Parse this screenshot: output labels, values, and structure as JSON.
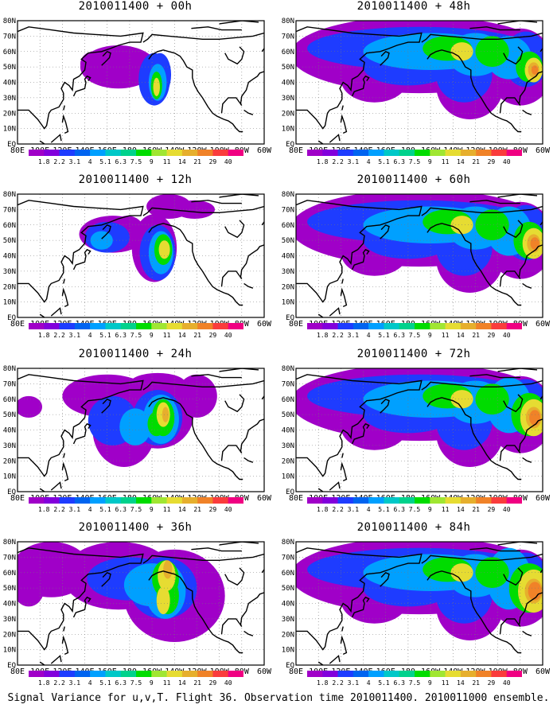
{
  "footer": "Signal Variance for u,v,T. Flight 36. Observation time 2010011400. 2010011000 ensemble.",
  "colorbar": {
    "labels": [
      "1.8",
      "2.2",
      "3.1",
      "4",
      "5.1",
      "6.3",
      "7.5",
      "9",
      "11",
      "14",
      "21",
      "29",
      "40"
    ],
    "colors": [
      "#a000c8",
      "#8200dc",
      "#1e3cff",
      "#0064f0",
      "#00a0ff",
      "#00c8c8",
      "#00d28c",
      "#00dc00",
      "#a0e632",
      "#e6dc32",
      "#e6af2d",
      "#f08228",
      "#fa3c3c",
      "#f00082"
    ]
  },
  "lon_labels": [
    "80E",
    "100E",
    "120E",
    "140E",
    "160E",
    "180",
    "160W",
    "140W",
    "120W",
    "100W",
    "80W",
    "60W"
  ],
  "lat_labels": [
    "EQ",
    "10N",
    "20N",
    "30N",
    "40N",
    "50N",
    "60N",
    "70N",
    "80N"
  ],
  "panels": [
    {
      "title": "2010011400 + 00h",
      "level": 0
    },
    {
      "title": "2010011400 + 48h",
      "level": 4
    },
    {
      "title": "2010011400 + 12h",
      "level": 1
    },
    {
      "title": "2010011400 + 60h",
      "level": 5
    },
    {
      "title": "2010011400 + 24h",
      "level": 2
    },
    {
      "title": "2010011400 + 72h",
      "level": 6
    },
    {
      "title": "2010011400 + 36h",
      "level": 3
    },
    {
      "title": "2010011400 + 84h",
      "level": 7
    }
  ]
}
